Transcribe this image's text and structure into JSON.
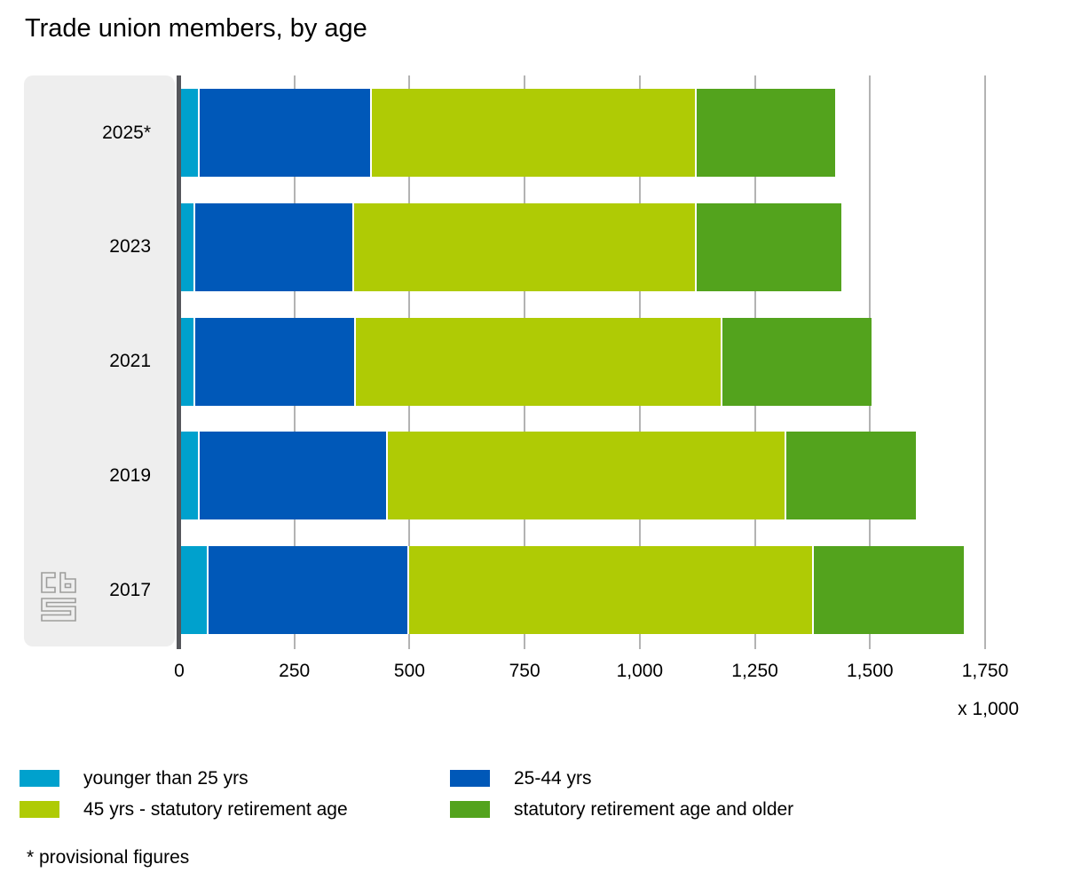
{
  "title": "Trade union members, by age",
  "footnote": "* provisional figures",
  "unit_label": "x 1,000",
  "colors": {
    "band": "#eeeeee",
    "axis_line": "#55565b",
    "gridline": "#b3b3b3",
    "text": "#000000",
    "logo": "#9d9d9c"
  },
  "chart_data": {
    "type": "bar",
    "orientation": "horizontal",
    "stacked": true,
    "title": "Trade union members, by age",
    "categories": [
      "2025*",
      "2023",
      "2021",
      "2019",
      "2017"
    ],
    "series": [
      {
        "name": "younger than 25 yrs",
        "color": "#00a1cd",
        "values": [
          40,
          30,
          30,
          40,
          60
        ]
      },
      {
        "name": "25-44 yrs",
        "color": "#0058b8",
        "values": [
          375,
          345,
          350,
          410,
          435
        ]
      },
      {
        "name": "45 yrs - statutory retirement age",
        "color": "#afcb05",
        "values": [
          705,
          745,
          795,
          865,
          880
        ]
      },
      {
        "name": "statutory retirement age and older",
        "color": "#53a31d",
        "values": [
          300,
          315,
          325,
          280,
          325
        ]
      }
    ],
    "totals": [
      1420,
      1435,
      1500,
      1595,
      1700
    ],
    "xlim": [
      0,
      1750
    ],
    "xticks": [
      0,
      250,
      500,
      750,
      1000,
      1250,
      1500,
      1750
    ],
    "xtick_labels": [
      "0",
      "250",
      "500",
      "750",
      "1,000",
      "1,250",
      "1,500",
      "1,750"
    ],
    "xlabel": "x 1,000",
    "grid": true,
    "legend_position": "bottom",
    "footnote": "* provisional figures"
  }
}
